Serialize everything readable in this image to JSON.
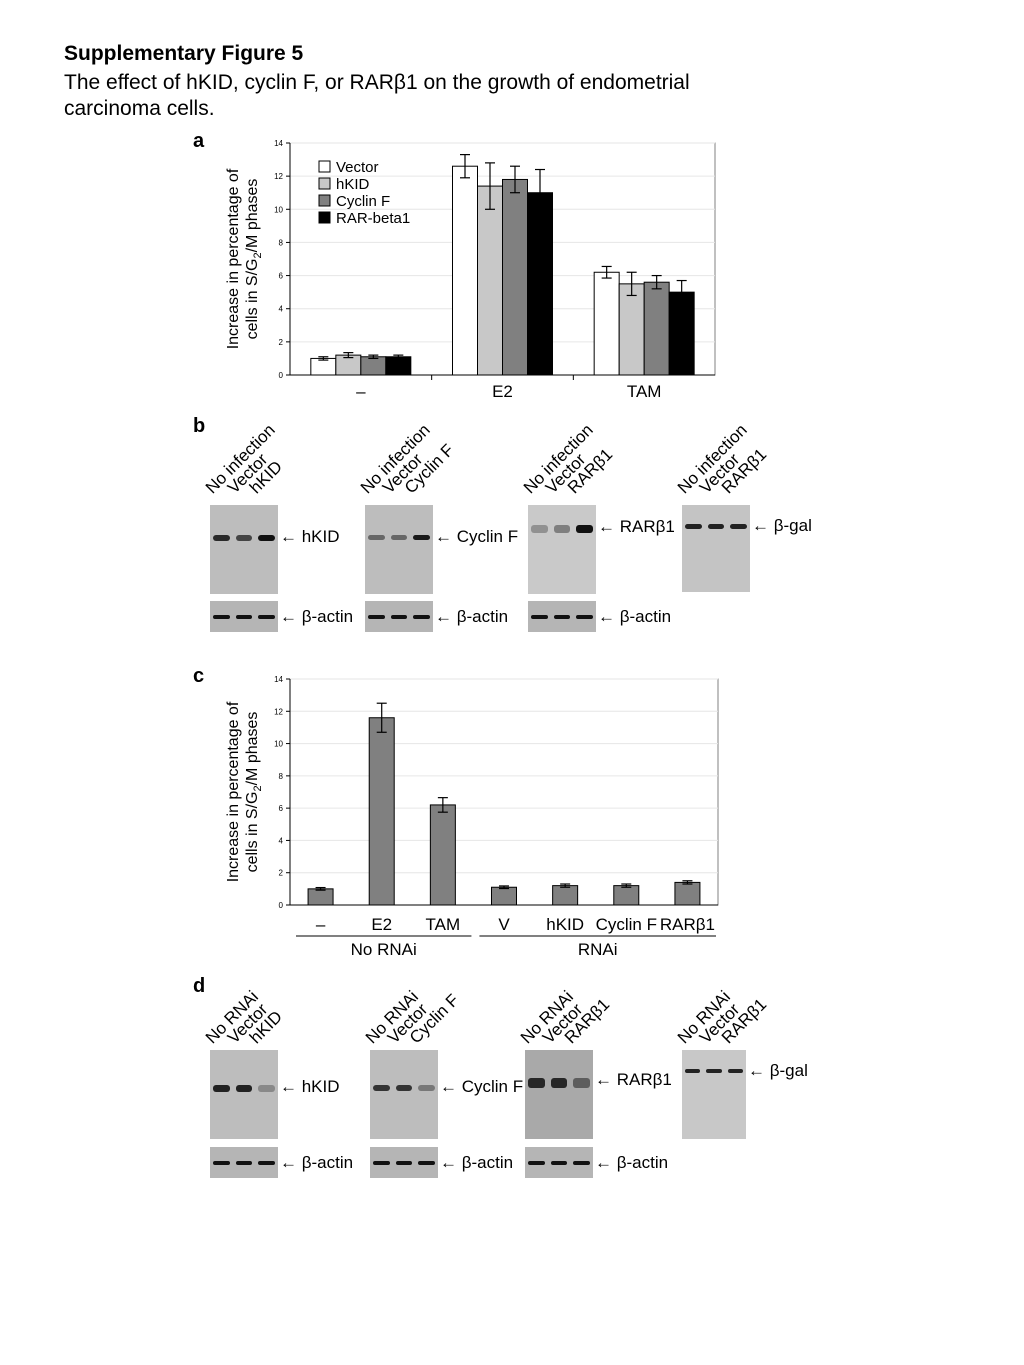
{
  "figure": {
    "title": "Supplementary Figure 5",
    "caption_line1": "The effect of hKID, cyclin F, or RARβ1 on the growth of endometrial",
    "caption_line2": "carcinoma cells."
  },
  "panel_labels": {
    "a": "a",
    "b": "b",
    "c": "c",
    "d": "d"
  },
  "chart_data": [
    {
      "panel": "a",
      "type": "bar",
      "ylabel_line1": "Increase in percentage of",
      "ylabel_line2": "cells in S/G2/M phases",
      "ylim": [
        0,
        14
      ],
      "yticks": [
        "0",
        "2",
        "4",
        "6",
        "8",
        "10",
        "12",
        "14"
      ],
      "categories": [
        "–",
        "E2",
        "TAM"
      ],
      "series": [
        {
          "name": "Vector",
          "color": "#ffffff",
          "values": [
            1.0,
            12.6,
            6.2
          ],
          "errors": [
            0.1,
            0.7,
            0.35
          ]
        },
        {
          "name": "hKID",
          "color": "#c8c8c8",
          "values": [
            1.2,
            11.4,
            5.5
          ],
          "errors": [
            0.15,
            1.4,
            0.7
          ]
        },
        {
          "name": "Cyclin F",
          "color": "#808080",
          "values": [
            1.1,
            11.8,
            5.6
          ],
          "errors": [
            0.1,
            0.8,
            0.4
          ]
        },
        {
          "name": "RAR-beta1",
          "color": "#000000",
          "values": [
            1.1,
            11.0,
            5.0
          ],
          "errors": [
            0.1,
            1.4,
            0.7
          ]
        }
      ],
      "grid": true,
      "legend": "top-left"
    },
    {
      "panel": "c",
      "type": "bar",
      "ylabel_line1": "Increase in percentage of",
      "ylabel_line2": "cells in S/G2/M phases",
      "ylim": [
        0,
        14
      ],
      "yticks": [
        "0",
        "2",
        "4",
        "6",
        "8",
        "10",
        "12",
        "14"
      ],
      "categories": [
        "–",
        "E2",
        "TAM",
        "V",
        "hKID",
        "Cyclin F",
        "RARβ1"
      ],
      "series": [
        {
          "color": "#808080",
          "values": [
            1.0,
            11.6,
            6.2,
            1.1,
            1.2,
            1.2,
            1.4
          ],
          "errors": [
            0.08,
            0.9,
            0.45,
            0.08,
            0.1,
            0.1,
            0.1
          ]
        }
      ],
      "groups": [
        {
          "label": "No RNAi",
          "span": [
            0,
            2
          ]
        },
        {
          "label": "RNAi",
          "span": [
            3,
            6
          ]
        }
      ],
      "grid": true
    }
  ],
  "blots_b": [
    {
      "lanes": [
        "No infection",
        "Vector",
        "hKID"
      ],
      "target": "hKID",
      "loading": "β-actin"
    },
    {
      "lanes": [
        "No infection",
        "Vector",
        "Cyclin F"
      ],
      "target": "Cyclin F",
      "loading": "β-actin"
    },
    {
      "lanes": [
        "No infection",
        "Vector",
        "RARβ1"
      ],
      "target": "RARβ1",
      "loading": "β-actin"
    },
    {
      "lanes": [
        "No infection",
        "Vector",
        "RARβ1"
      ],
      "target": "β-gal",
      "loading": ""
    }
  ],
  "blots_d": [
    {
      "lanes": [
        "No RNAi",
        "Vector",
        "hKID"
      ],
      "target": "hKID",
      "loading": "β-actin"
    },
    {
      "lanes": [
        "No RNAi",
        "Vector",
        "Cyclin F"
      ],
      "target": "Cyclin F",
      "loading": "β-actin"
    },
    {
      "lanes": [
        "No RNAi",
        "Vector",
        "RARβ1"
      ],
      "target": "RARβ1",
      "loading": "β-actin"
    },
    {
      "lanes": [
        "No RNAi",
        "Vector",
        "RARβ1"
      ],
      "target": "β-gal",
      "loading": ""
    }
  ]
}
